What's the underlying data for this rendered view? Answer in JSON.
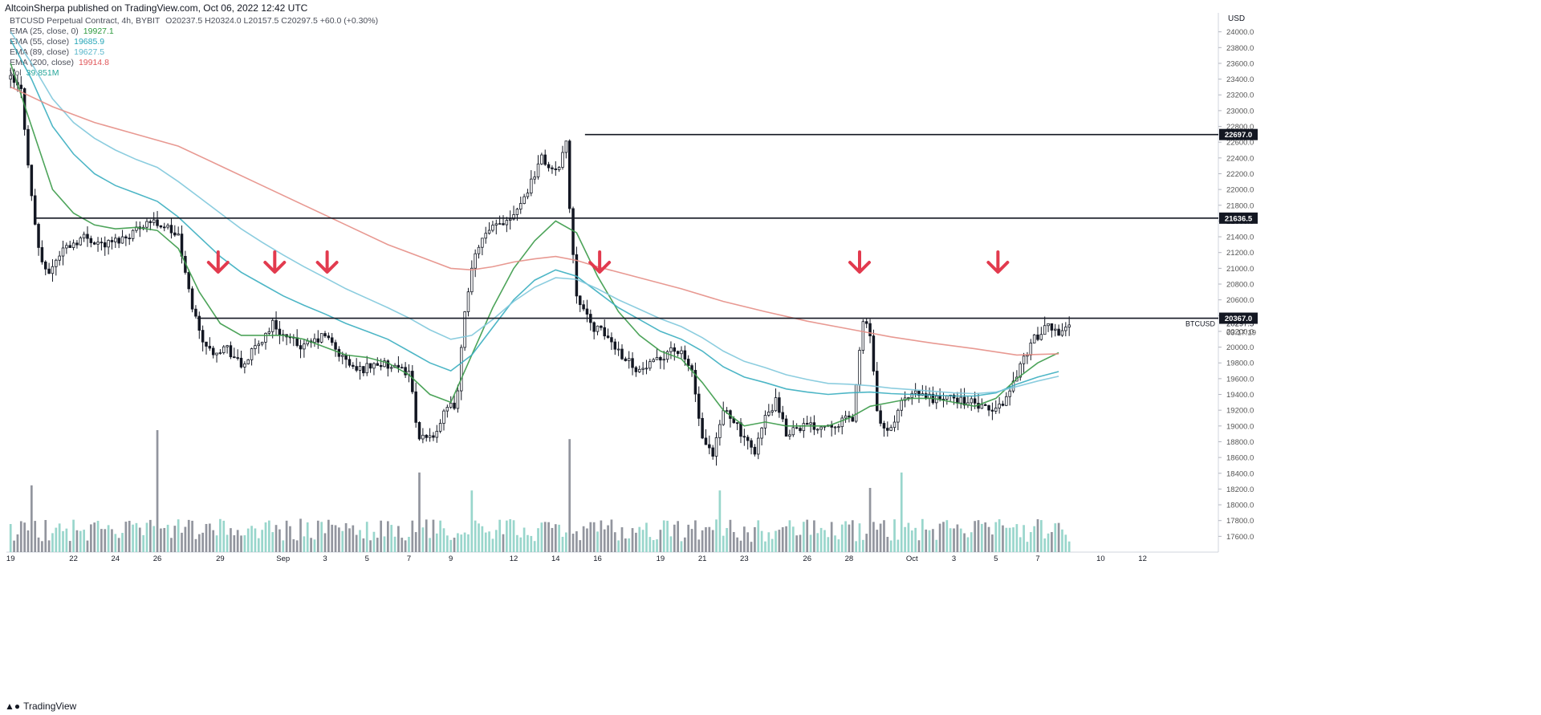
{
  "publisher": "AltcoinSherpa published on TradingView.com, Oct 06, 2022 12:42 UTC",
  "legend": {
    "symbol": "BTCUSD Perpetual Contract, 4h, BYBIT",
    "ohlc": "O20237.5  H20324.0  L20157.5  C20297.5  +60.0 (+0.30%)",
    "indicators": [
      {
        "label": "EMA (25, close, 0)",
        "value": "19927.1",
        "color": "#2e9a3e"
      },
      {
        "label": "EMA (55, close)",
        "value": "19685.9",
        "color": "#26a6b8"
      },
      {
        "label": "EMA (89, close)",
        "value": "19627.5",
        "color": "#5bb8cc"
      },
      {
        "label": "EMA (200, close)",
        "value": "19914.8",
        "color": "#e0575a"
      },
      {
        "label": "Vol",
        "value": "39.851M",
        "color": "#26a69a"
      }
    ]
  },
  "footer_logo": "TradingView",
  "chart_data": {
    "type": "candlestick",
    "title": "BTCUSD Perpetual Contract, 4h, BYBIT",
    "currency_label": "USD",
    "ylim": [
      17400,
      24200
    ],
    "y_ticks": [
      17600,
      17800,
      18000,
      18200,
      18400,
      18600,
      18800,
      19000,
      19200,
      19400,
      19600,
      19800,
      20000,
      20200,
      20400,
      20600,
      20800,
      21000,
      21200,
      21400,
      21600,
      21800,
      22000,
      22200,
      22400,
      22600,
      22800,
      23000,
      23200,
      23400,
      23600,
      23800,
      24000
    ],
    "x_ticks": [
      {
        "label": "19",
        "day": 0
      },
      {
        "label": "22",
        "day": 3
      },
      {
        "label": "24",
        "day": 5
      },
      {
        "label": "26",
        "day": 7
      },
      {
        "label": "29",
        "day": 10
      },
      {
        "label": "Sep",
        "day": 13
      },
      {
        "label": "3",
        "day": 15
      },
      {
        "label": "5",
        "day": 17
      },
      {
        "label": "7",
        "day": 19
      },
      {
        "label": "9",
        "day": 21
      },
      {
        "label": "12",
        "day": 24
      },
      {
        "label": "14",
        "day": 26
      },
      {
        "label": "16",
        "day": 28
      },
      {
        "label": "19",
        "day": 31
      },
      {
        "label": "21",
        "day": 33
      },
      {
        "label": "23",
        "day": 35
      },
      {
        "label": "26",
        "day": 38
      },
      {
        "label": "28",
        "day": 40
      },
      {
        "label": "Oct",
        "day": 43
      },
      {
        "label": "3",
        "day": 45
      },
      {
        "label": "5",
        "day": 47
      },
      {
        "label": "7",
        "day": 49
      },
      {
        "label": "10",
        "day": 52
      },
      {
        "label": "12",
        "day": 54
      }
    ],
    "horizontal_levels": [
      {
        "value": 22697.0,
        "label": "22697.0",
        "from_day": 27.4
      },
      {
        "value": 21636.5,
        "label": "21636.5",
        "from_day": 1.2
      },
      {
        "value": 20367.0,
        "label": "20367.0",
        "from_day": 8.9
      }
    ],
    "last_price": {
      "value": 20297.5,
      "label": "20297.5",
      "countdown": "03:17:19",
      "symbol": "BTCUSD"
    },
    "arrows_days": [
      9.9,
      12.6,
      15.1,
      28.1,
      40.5,
      47.1
    ],
    "price_path": [
      [
        0,
        23400
      ],
      [
        0.5,
        23250
      ],
      [
        1.0,
        21900
      ],
      [
        1.3,
        21300
      ],
      [
        1.7,
        20900
      ],
      [
        2.5,
        21250
      ],
      [
        3.5,
        21400
      ],
      [
        4.5,
        21300
      ],
      [
        5.5,
        21400
      ],
      [
        6.5,
        21600
      ],
      [
        7.3,
        21550
      ],
      [
        8.0,
        21400
      ],
      [
        8.5,
        20700
      ],
      [
        9.0,
        20200
      ],
      [
        9.5,
        19950
      ],
      [
        10.3,
        20000
      ],
      [
        11.0,
        19750
      ],
      [
        12.0,
        20100
      ],
      [
        12.5,
        20300
      ],
      [
        13.2,
        20100
      ],
      [
        14.0,
        20000
      ],
      [
        15.0,
        20150
      ],
      [
        15.7,
        19900
      ],
      [
        16.5,
        19700
      ],
      [
        17.5,
        19800
      ],
      [
        18.5,
        19700
      ],
      [
        19.0,
        19700
      ],
      [
        19.5,
        18800
      ],
      [
        20.2,
        18900
      ],
      [
        20.8,
        19200
      ],
      [
        21.3,
        19300
      ],
      [
        21.7,
        20600
      ],
      [
        22.3,
        21300
      ],
      [
        23.0,
        21500
      ],
      [
        23.8,
        21650
      ],
      [
        24.5,
        21900
      ],
      [
        25.3,
        22400
      ],
      [
        26.0,
        22200
      ],
      [
        26.5,
        22600
      ],
      [
        26.7,
        21600
      ],
      [
        27.0,
        20700
      ],
      [
        27.6,
        20300
      ],
      [
        28.4,
        20150
      ],
      [
        29.2,
        19900
      ],
      [
        30.0,
        19700
      ],
      [
        30.8,
        19800
      ],
      [
        31.5,
        20000
      ],
      [
        32.0,
        19900
      ],
      [
        32.5,
        19700
      ],
      [
        33.0,
        18800
      ],
      [
        33.5,
        18600
      ],
      [
        34.0,
        19200
      ],
      [
        34.5,
        19100
      ],
      [
        35.0,
        18800
      ],
      [
        35.5,
        18700
      ],
      [
        36.0,
        19100
      ],
      [
        36.5,
        19300
      ],
      [
        37.0,
        18900
      ],
      [
        37.5,
        19000
      ],
      [
        38.5,
        19000
      ],
      [
        39.5,
        19050
      ],
      [
        40.2,
        19100
      ],
      [
        40.6,
        20300
      ],
      [
        41.0,
        20200
      ],
      [
        41.4,
        19000
      ],
      [
        41.9,
        18900
      ],
      [
        42.5,
        19300
      ],
      [
        43.2,
        19400
      ],
      [
        44.0,
        19350
      ],
      [
        45.0,
        19350
      ],
      [
        45.8,
        19300
      ],
      [
        46.5,
        19200
      ],
      [
        47.0,
        19200
      ],
      [
        47.6,
        19400
      ],
      [
        48.2,
        19800
      ],
      [
        48.8,
        20100
      ],
      [
        49.5,
        20250
      ],
      [
        50.0,
        20200
      ],
      [
        50.5,
        20300
      ]
    ],
    "series": [
      {
        "name": "EMA (25, close, 0)",
        "color": "#3a9a48",
        "points": [
          [
            0,
            23600
          ],
          [
            1,
            22800
          ],
          [
            2,
            22000
          ],
          [
            3,
            21700
          ],
          [
            4,
            21550
          ],
          [
            5,
            21500
          ],
          [
            6,
            21520
          ],
          [
            7,
            21480
          ],
          [
            8,
            21250
          ],
          [
            9,
            20700
          ],
          [
            10,
            20300
          ],
          [
            11,
            20150
          ],
          [
            12,
            20150
          ],
          [
            13,
            20150
          ],
          [
            14,
            20100
          ],
          [
            15,
            20000
          ],
          [
            16,
            19900
          ],
          [
            17,
            19870
          ],
          [
            18,
            19800
          ],
          [
            19,
            19650
          ],
          [
            20,
            19400
          ],
          [
            21,
            19300
          ],
          [
            22,
            19900
          ],
          [
            23,
            20500
          ],
          [
            24,
            21000
          ],
          [
            25,
            21350
          ],
          [
            26,
            21600
          ],
          [
            27,
            21450
          ],
          [
            28,
            20900
          ],
          [
            29,
            20450
          ],
          [
            30,
            20150
          ],
          [
            31,
            19950
          ],
          [
            32,
            19850
          ],
          [
            33,
            19550
          ],
          [
            34,
            19200
          ],
          [
            35,
            19000
          ],
          [
            36,
            19050
          ],
          [
            37,
            19000
          ],
          [
            38,
            19000
          ],
          [
            39,
            19000
          ],
          [
            40,
            19100
          ],
          [
            41,
            19250
          ],
          [
            42,
            19300
          ],
          [
            43,
            19350
          ],
          [
            44,
            19350
          ],
          [
            45,
            19300
          ],
          [
            46,
            19250
          ],
          [
            47,
            19350
          ],
          [
            48,
            19600
          ],
          [
            49,
            19800
          ],
          [
            50,
            19930
          ]
        ]
      },
      {
        "name": "EMA (55, close)",
        "color": "#3aaec0",
        "points": [
          [
            0,
            23900
          ],
          [
            1,
            23400
          ],
          [
            2,
            22800
          ],
          [
            3,
            22450
          ],
          [
            4,
            22200
          ],
          [
            5,
            22050
          ],
          [
            6,
            21950
          ],
          [
            7,
            21850
          ],
          [
            8,
            21650
          ],
          [
            9,
            21400
          ],
          [
            10,
            21150
          ],
          [
            11,
            20950
          ],
          [
            12,
            20800
          ],
          [
            13,
            20650
          ],
          [
            14,
            20530
          ],
          [
            15,
            20420
          ],
          [
            16,
            20300
          ],
          [
            17,
            20200
          ],
          [
            18,
            20100
          ],
          [
            19,
            19950
          ],
          [
            20,
            19800
          ],
          [
            21,
            19700
          ],
          [
            22,
            19900
          ],
          [
            23,
            20250
          ],
          [
            24,
            20600
          ],
          [
            25,
            20850
          ],
          [
            26,
            20980
          ],
          [
            27,
            20900
          ],
          [
            28,
            20700
          ],
          [
            29,
            20500
          ],
          [
            30,
            20350
          ],
          [
            31,
            20200
          ],
          [
            32,
            20100
          ],
          [
            33,
            19950
          ],
          [
            34,
            19750
          ],
          [
            35,
            19620
          ],
          [
            36,
            19550
          ],
          [
            37,
            19470
          ],
          [
            38,
            19430
          ],
          [
            39,
            19400
          ],
          [
            40,
            19420
          ],
          [
            41,
            19430
          ],
          [
            42,
            19410
          ],
          [
            43,
            19400
          ],
          [
            44,
            19390
          ],
          [
            45,
            19380
          ],
          [
            46,
            19380
          ],
          [
            47,
            19420
          ],
          [
            48,
            19530
          ],
          [
            49,
            19620
          ],
          [
            50,
            19690
          ]
        ]
      },
      {
        "name": "EMA (89, close)",
        "color": "#7fc8db",
        "points": [
          [
            0,
            24000
          ],
          [
            1,
            23600
          ],
          [
            2,
            23150
          ],
          [
            3,
            22850
          ],
          [
            4,
            22650
          ],
          [
            5,
            22500
          ],
          [
            6,
            22380
          ],
          [
            7,
            22280
          ],
          [
            8,
            22100
          ],
          [
            9,
            21900
          ],
          [
            10,
            21700
          ],
          [
            11,
            21500
          ],
          [
            12,
            21330
          ],
          [
            13,
            21170
          ],
          [
            14,
            21020
          ],
          [
            15,
            20880
          ],
          [
            16,
            20740
          ],
          [
            17,
            20620
          ],
          [
            18,
            20500
          ],
          [
            19,
            20370
          ],
          [
            20,
            20220
          ],
          [
            21,
            20100
          ],
          [
            22,
            20150
          ],
          [
            23,
            20350
          ],
          [
            24,
            20580
          ],
          [
            25,
            20760
          ],
          [
            26,
            20880
          ],
          [
            27,
            20860
          ],
          [
            28,
            20740
          ],
          [
            29,
            20600
          ],
          [
            30,
            20480
          ],
          [
            31,
            20360
          ],
          [
            32,
            20260
          ],
          [
            33,
            20120
          ],
          [
            34,
            19950
          ],
          [
            35,
            19820
          ],
          [
            36,
            19740
          ],
          [
            37,
            19650
          ],
          [
            38,
            19590
          ],
          [
            39,
            19540
          ],
          [
            40,
            19530
          ],
          [
            41,
            19510
          ],
          [
            42,
            19480
          ],
          [
            43,
            19460
          ],
          [
            44,
            19440
          ],
          [
            45,
            19420
          ],
          [
            46,
            19410
          ],
          [
            47,
            19430
          ],
          [
            48,
            19500
          ],
          [
            49,
            19570
          ],
          [
            50,
            19630
          ]
        ]
      },
      {
        "name": "EMA (200, close)",
        "color": "#e58e86",
        "points": [
          [
            0,
            23300
          ],
          [
            2,
            23050
          ],
          [
            4,
            22850
          ],
          [
            6,
            22700
          ],
          [
            8,
            22550
          ],
          [
            10,
            22300
          ],
          [
            12,
            22050
          ],
          [
            14,
            21800
          ],
          [
            16,
            21550
          ],
          [
            18,
            21300
          ],
          [
            20,
            21100
          ],
          [
            21,
            21000
          ],
          [
            22,
            20980
          ],
          [
            23,
            21020
          ],
          [
            24,
            21080
          ],
          [
            25,
            21120
          ],
          [
            26,
            21150
          ],
          [
            27,
            21100
          ],
          [
            28,
            21020
          ],
          [
            30,
            20880
          ],
          [
            32,
            20740
          ],
          [
            34,
            20580
          ],
          [
            36,
            20450
          ],
          [
            38,
            20330
          ],
          [
            40,
            20230
          ],
          [
            42,
            20130
          ],
          [
            44,
            20050
          ],
          [
            46,
            19980
          ],
          [
            48,
            19900
          ],
          [
            50,
            19915
          ]
        ]
      }
    ],
    "volume_spikes": [
      [
        7,
        0.95
      ],
      [
        19.5,
        0.62
      ],
      [
        26.7,
        0.88
      ],
      [
        33.8,
        0.48
      ],
      [
        22.0,
        0.48
      ],
      [
        42.5,
        0.62
      ],
      [
        41.0,
        0.5
      ],
      [
        1,
        0.52
      ]
    ]
  }
}
